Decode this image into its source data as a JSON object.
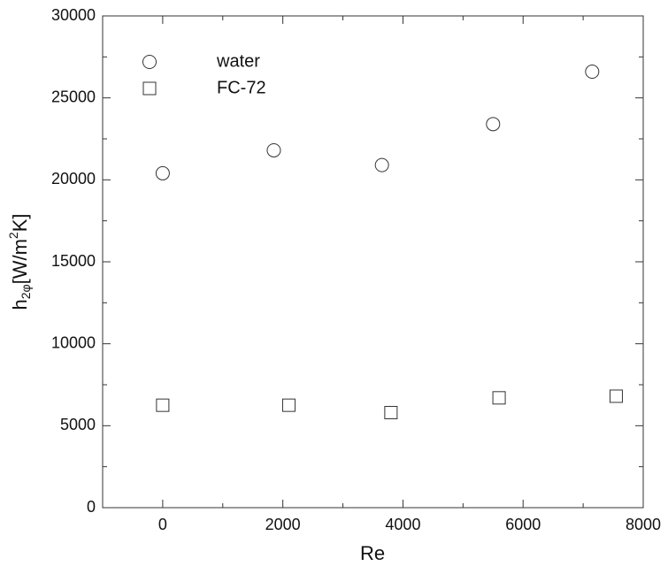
{
  "chart_data": {
    "type": "scatter",
    "x_label": "Re",
    "y_label_parts": [
      "h",
      "2φ",
      "[W/m",
      "2",
      "K]"
    ],
    "series": [
      {
        "name": "water",
        "marker": "circle",
        "color": "#333333",
        "x": [
          0,
          1850,
          3650,
          5500,
          7150
        ],
        "values": [
          20400,
          21800,
          20900,
          23400,
          26600
        ]
      },
      {
        "name": "FC-72",
        "marker": "square",
        "color": "#333333",
        "x": [
          0,
          2100,
          3800,
          5600,
          7550
        ],
        "values": [
          6250,
          6250,
          5800,
          6700,
          6800
        ]
      }
    ],
    "xlim": [
      -1000,
      8000
    ],
    "xticks": [
      0,
      2000,
      4000,
      6000,
      8000
    ],
    "xminorticks": [
      -1000,
      1000,
      3000,
      5000,
      7000
    ],
    "ylim": [
      0,
      30000
    ],
    "yticks": [
      0,
      5000,
      10000,
      15000,
      20000,
      25000,
      30000
    ],
    "yminorticks": [
      2500,
      7500,
      12500,
      17500,
      22500,
      27500
    ],
    "legend": "upper left"
  }
}
